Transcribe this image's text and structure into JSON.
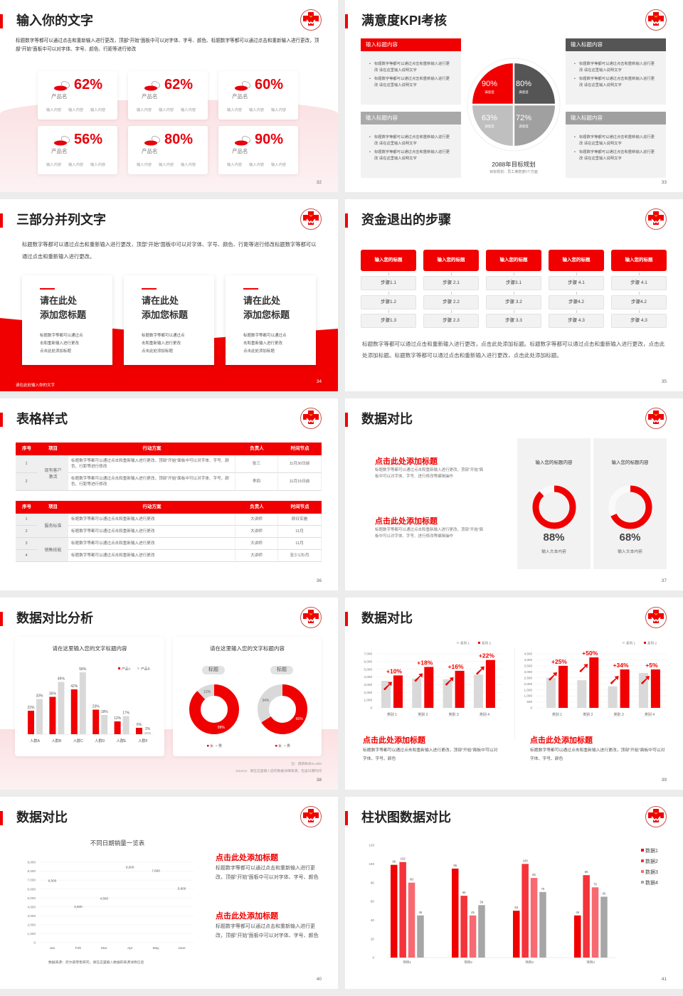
{
  "theme": {
    "red": "#f00000",
    "dark_gray": "#555555",
    "panel_gray": "#f2f2f2",
    "mid_gray": "#a9a9a9",
    "light_gray": "#d9d9d9"
  },
  "logo_icon": "red-cross-hands-logo",
  "slides": [
    {
      "page": "32",
      "title": "输入你的文字",
      "intro": "标题数字等都可以通过点击和重新输入进行更改，顶部“开始”面板中可以对字体、字号、颜色、标题数字等都可以通过点击和重新输入进行更改，顶部“开始”面板中可以对字体、字号、颜色、行距等进行修改",
      "card_icon": "pill-icon",
      "cards": [
        {
          "percent": "62%",
          "name": "产品名",
          "items": [
            "输入内容",
            "输入内容",
            "输入内容"
          ]
        },
        {
          "percent": "62%",
          "name": "产品名",
          "items": [
            "输入内容",
            "输入内容",
            "输入内容"
          ]
        },
        {
          "percent": "60%",
          "name": "产品名",
          "items": [
            "输入内容",
            "输入内容",
            "输入内容"
          ]
        },
        {
          "percent": "56%",
          "name": "产品名",
          "items": [
            "输入内容",
            "输入内容",
            "输入内容"
          ]
        },
        {
          "percent": "80%",
          "name": "产品名",
          "items": [
            "输入内容",
            "输入内容",
            "输入内容"
          ]
        },
        {
          "percent": "90%",
          "name": "产品名",
          "items": [
            "输入内容",
            "输入内容",
            "输入内容"
          ]
        }
      ]
    },
    {
      "page": "33",
      "title": "满意度KPI考核",
      "boxes": [
        {
          "header": "输入标题内容",
          "bullets": [
            "标题数字等都可以通过点击和重新输入进行更改 请在这里输入说明文字",
            "标题数字等都可以通过点击和重新输入进行更改 请在这里输入说明文字"
          ]
        },
        {
          "header": "输入标题内容",
          "bullets": [
            "标题数字等都可以通过点击和重新输入进行更改 请在这里输入说明文字",
            "标题数字等都可以通过点击和重新输入进行更改 请在这里输入说明文字"
          ]
        },
        {
          "header": "输入标题内容",
          "bullets": [
            "标题数字等都可以通过点击和重新输入进行更改 请在这里输入说明文字",
            "标题数字等都可以通过点击和重新输入进行更改 请在这里输入说明文字"
          ]
        },
        {
          "header": "输入标题内容",
          "bullets": [
            "标题数字等都可以通过点击和重新输入进行更改 请在这里输入说明文字",
            "标题数字等都可以通过点击和重新输入进行更改 请在这里输入说明文字"
          ]
        }
      ],
      "pie": [
        {
          "value": "90%",
          "label": "满意度",
          "color": "#f00000"
        },
        {
          "value": "80%",
          "label": "满意度",
          "color": "#555555"
        },
        {
          "value": "63%",
          "label": "满意度",
          "color": "#bfbfbf"
        },
        {
          "value": "72%",
          "label": "满意度",
          "color": "#a0a0a0"
        }
      ],
      "plan_title": "2088年目标规划",
      "plan_sub": "目标规划：员工满意度5个方面"
    },
    {
      "page": "34",
      "title": "三部分并列文字",
      "intro": "标题数字等都可以通过点击和重新输入进行更改，顶部“开始”面板中可以对字体、字号、颜色、行距等进行修改标题数字等都可以通过点击和重新输入进行更改。",
      "cards": [
        {
          "title": [
            "请在此处",
            "添加您标题"
          ],
          "desc": [
            "标题数字等都可以通过点",
            "击和重新输入进行更改",
            "点击此处添加标题"
          ]
        },
        {
          "title": [
            "请在此处",
            "添加您标题"
          ],
          "desc": [
            "标题数字等都可以通过点",
            "击和重新输入进行更改",
            "点击此处添加标题"
          ]
        },
        {
          "title": [
            "请在此处",
            "添加您标题"
          ],
          "desc": [
            "标题数字等都可以通过点",
            "击和重新输入进行更改",
            "点击此处添加标题"
          ]
        }
      ],
      "footer": "请在此处输入你的文字"
    },
    {
      "page": "35",
      "title": "资金退出的步骤",
      "columns": [
        {
          "header": "输入您的标题",
          "steps": [
            "步骤1.1",
            "步骤1.2",
            "步骤1.3"
          ]
        },
        {
          "header": "输入您的标题",
          "steps": [
            "步骤 2.1",
            "步骤 2.2",
            "步骤 2.3"
          ]
        },
        {
          "header": "输入您的标题",
          "steps": [
            "步骤3.1",
            "步骤 3.2",
            "步骤 3.3"
          ]
        },
        {
          "header": "输入您的标题",
          "steps": [
            "步骤 4.1",
            "步骤4.2",
            "步骤 4.3"
          ]
        },
        {
          "header": "输入您的标题",
          "steps": [
            "步骤 4.1",
            "步骤4.2",
            "步骤 4.3"
          ]
        }
      ],
      "text": "标题数字等都可以通过点击和重新输入进行更改，点击此处添加标题。标题数字等都可以通过点击和重新输入进行更改，点击此处添加标题。标题数字等都可以通过点击和重新输入进行更改，点击此处添加标题。"
    },
    {
      "page": "36",
      "title": "表格样式",
      "headers": [
        "序号",
        "项目",
        "行动方案",
        "负责人",
        "时间节点"
      ],
      "tables": [
        {
          "groups": [
            {
              "name": "现有客户激活",
              "rows": [
                {
                  "no": "1",
                  "plan": "标题数字等都可以通过点击和重新输入进行更改，顶部“开始”面板中可以对字体、字号、颜色、行距等进行修改",
                  "owner": "张三",
                  "time": "11月30日前"
                },
                {
                  "no": "2",
                  "plan": "标题数字等都可以通过点击和重新输入进行更改，顶部“开始”面板中可以对字体、字号、颜色、行距等进行修改",
                  "owner": "李四",
                  "time": "11月15日前"
                }
              ]
            }
          ]
        },
        {
          "groups": [
            {
              "name": "服务标准",
              "rows": [
                {
                  "no": "1",
                  "plan": "标题数字等都可以通过点击和重新输入进行更改",
                  "owner": "大讲师",
                  "time": "即日实施"
                },
                {
                  "no": "2",
                  "plan": "标题数字等都可以通过点击和重新输入进行更改",
                  "owner": "大讲师",
                  "time": "11月"
                }
              ]
            },
            {
              "name": "销售技能",
              "rows": [
                {
                  "no": "3",
                  "plan": "标题数字等都可以通过点击和重新输入进行更改",
                  "owner": "大讲师",
                  "time": "11月"
                },
                {
                  "no": "4",
                  "plan": "标题数字等都可以通过点击和重新输入进行更改",
                  "owner": "大讲师",
                  "time": "至少1次/月"
                }
              ]
            }
          ]
        }
      ]
    },
    {
      "page": "37",
      "title": "数据对比",
      "blocks": [
        {
          "heading": "点击此处添加标题",
          "text": "标题数字等都可以通过点击和重新输入进行更改，顶部“开始”面板中可以对字体、字号、进行修改等编辑操作"
        },
        {
          "heading": "点击此处添加标题",
          "text": "标题数字等都可以通过点击和重新输入进行更改，顶部“开始”面板中可以对字体、字号、进行修改等编辑操作"
        }
      ],
      "panels": [
        {
          "title": "输入您的标题内容",
          "value": 88,
          "value_text": "88%",
          "label": "输入文本内容"
        },
        {
          "title": "输入您的标题内容",
          "value": 68,
          "value_text": "68%",
          "label": "输入文本内容"
        }
      ]
    },
    {
      "page": "38",
      "title": "数据对比分析",
      "note": "注：调研样本N=500",
      "source": "Source：请在这里输入您的数据详细来源，包含日期时间"
    },
    {
      "page": "39",
      "title": "数据对比",
      "blocks": [
        {
          "heading": "点击此处添加标题",
          "text": "标题数字等都可以通过点击和重新输入进行更改，顶部“开始”面板中可以对字体、字号、颜色"
        },
        {
          "heading": "点击此处添加标题",
          "text": "标题数字等都可以通过点击和重新输入进行更改，顶部“开始”面板中可以对字体、字号、颜色"
        }
      ]
    },
    {
      "page": "40",
      "title": "数据对比",
      "source": "数据来源：尼尔森零售研究，请在这里输入数据的来源详情信息",
      "blocks": [
        {
          "heading": "点击此处添加标题",
          "text": "标题数字等都可以通过点击和重新输入进行更改，顶部“开始”面板中可以对字体、字号、颜色"
        },
        {
          "heading": "点击此处添加标题",
          "text": "标题数字等都可以通过点击和重新输入进行更改，顶部“开始”面板中可以对字体、字号、颜色"
        }
      ]
    },
    {
      "page": "41",
      "title": "柱状图数据对比"
    }
  ],
  "chart_data": [
    {
      "type": "bar",
      "title": "请在这里输入您的文字标题内容",
      "categories": [
        "人群A",
        "人群B",
        "人群C",
        "人群D",
        "人群E",
        "人群F"
      ],
      "series": [
        {
          "name": "产品A",
          "values": [
            22,
            35,
            42,
            23,
            12,
            6
          ],
          "color": "#f00000"
        },
        {
          "name": "产品B",
          "values": [
            33,
            49,
            58,
            18,
            17,
            2
          ],
          "color": "#d9d9d9"
        }
      ],
      "unit": "%",
      "legend": "top-right",
      "grid": false
    },
    {
      "type": "pie",
      "title": "请在这里输入您的文字标题内容",
      "legend": [
        "女",
        "男"
      ],
      "colors": [
        "#f00000",
        "#d9d9d9"
      ],
      "donuts": [
        {
          "label": "标题",
          "values": [
            88,
            12
          ]
        },
        {
          "label": "标题",
          "values": [
            66,
            34
          ]
        }
      ]
    },
    {
      "type": "bar",
      "categories": [
        "类别 1",
        "类别 2",
        "类别 3",
        "类别 4"
      ],
      "series": [
        {
          "name": "系列 1",
          "values": [
            3500,
            3800,
            3700,
            4300
          ],
          "color": "#d9d9d9"
        },
        {
          "name": "系列 2",
          "values": [
            4200,
            5300,
            4800,
            6200
          ],
          "color": "#f00000"
        }
      ],
      "annotations": [
        "+10%",
        "+18%",
        "+16%",
        "+22%"
      ],
      "ylim": [
        0,
        7000
      ],
      "ystep": 1000,
      "legend": "top-right",
      "grid": true
    },
    {
      "type": "bar",
      "categories": [
        "类别 1",
        "类别 2",
        "类别 3",
        "类别 4"
      ],
      "series": [
        {
          "name": "系列 1",
          "values": [
            2500,
            2300,
            1800,
            2900
          ],
          "color": "#d9d9d9"
        },
        {
          "name": "系列 2",
          "values": [
            3500,
            4200,
            3200,
            3200
          ],
          "color": "#f00000"
        }
      ],
      "annotations": [
        "+25%",
        "+50%",
        "+34%",
        "+5%"
      ],
      "ylim": [
        0,
        4500
      ],
      "ystep": 500,
      "legend": "top-right",
      "grid": true
    },
    {
      "type": "bar",
      "title": "不同日期销量一览表",
      "categories": [
        "Jan",
        "Feb",
        "Mar",
        "Apr",
        "May",
        "June"
      ],
      "values": [
        6500,
        3600,
        4500,
        8000,
        7600,
        5600
      ],
      "ylim": [
        0,
        9000
      ],
      "ystep": 1000,
      "grid": true,
      "color": "#f00000"
    },
    {
      "type": "bar",
      "categories": [
        "项目1",
        "项目2",
        "项目3",
        "项目4"
      ],
      "series": [
        {
          "name": "数据1",
          "values": [
            99,
            95,
            50,
            45
          ],
          "color": "#f00000"
        },
        {
          "name": "数据2",
          "values": [
            102,
            66,
            100,
            88
          ],
          "color": "#f5333b"
        },
        {
          "name": "数据3",
          "values": [
            80,
            45,
            85,
            75
          ],
          "color": "#f76a72"
        },
        {
          "name": "数据4",
          "values": [
            45,
            56,
            70,
            65
          ],
          "color": "#a6a6a6"
        }
      ],
      "ylim": [
        0,
        120
      ],
      "ystep": 20,
      "legend": "right",
      "grid": false
    }
  ]
}
